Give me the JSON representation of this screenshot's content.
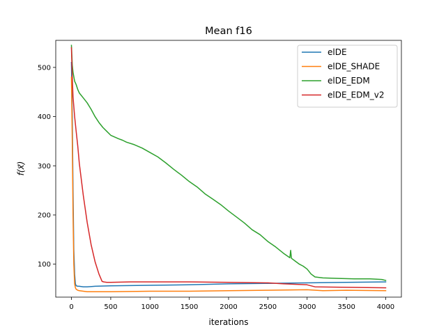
{
  "chart_data": {
    "type": "line",
    "title": "Mean f16",
    "xlabel": "iterations",
    "ylabel": "f(x⃗)",
    "xlim": [
      -200,
      4200
    ],
    "ylim": [
      33,
      555
    ],
    "xticks": [
      0,
      500,
      1000,
      1500,
      2000,
      2500,
      3000,
      3500,
      4000
    ],
    "yticks": [
      100,
      200,
      300,
      400,
      500
    ],
    "grid": false,
    "legend_position": "top-right",
    "series": [
      {
        "name": "elDE",
        "color": "#1f77b4",
        "x": [
          0,
          10,
          20,
          30,
          40,
          50,
          60,
          80,
          100,
          150,
          200,
          300,
          500,
          1000,
          1500,
          2000,
          2500,
          3000,
          3500,
          4000
        ],
        "y": [
          510,
          400,
          250,
          130,
          80,
          60,
          56,
          55,
          55,
          54,
          54,
          55,
          56,
          57,
          58,
          60,
          61,
          62,
          63,
          64
        ]
      },
      {
        "name": "elDE_SHADE",
        "color": "#ff7f0e",
        "x": [
          0,
          10,
          20,
          30,
          40,
          50,
          60,
          80,
          100,
          150,
          200,
          300,
          500,
          1000,
          1500,
          2000,
          2500,
          3000,
          3200,
          3500,
          4000
        ],
        "y": [
          480,
          350,
          200,
          100,
          60,
          52,
          49,
          47,
          46,
          45,
          44,
          44,
          44,
          45,
          45,
          46,
          47,
          48,
          46,
          47,
          46
        ]
      },
      {
        "name": "elDE_EDM",
        "color": "#2ca02c",
        "x": [
          0,
          10,
          20,
          40,
          60,
          80,
          100,
          150,
          200,
          250,
          300,
          350,
          400,
          450,
          500,
          600,
          650,
          700,
          800,
          900,
          1000,
          1100,
          1200,
          1300,
          1400,
          1500,
          1600,
          1700,
          1800,
          1900,
          2000,
          2100,
          2200,
          2300,
          2400,
          2500,
          2600,
          2700,
          2780,
          2790,
          2800,
          2850,
          2900,
          2950,
          3000,
          3050,
          3100,
          3200,
          3400,
          3600,
          3800,
          3950,
          4000
        ],
        "y": [
          545,
          505,
          490,
          472,
          465,
          455,
          448,
          438,
          428,
          415,
          400,
          388,
          378,
          370,
          362,
          355,
          352,
          348,
          343,
          336,
          327,
          318,
          306,
          293,
          281,
          268,
          257,
          243,
          232,
          221,
          208,
          196,
          184,
          170,
          160,
          146,
          135,
          122,
          113,
          128,
          112,
          106,
          100,
          96,
          90,
          80,
          74,
          72,
          71,
          70,
          70,
          69,
          67
        ]
      },
      {
        "name": "elDE_EDM_v2",
        "color": "#d62728",
        "x": [
          0,
          10,
          20,
          40,
          60,
          80,
          100,
          150,
          200,
          250,
          300,
          350,
          390,
          410,
          450,
          500,
          750,
          1000,
          1500,
          2000,
          2500,
          2700,
          3000,
          3100,
          3500,
          4000
        ],
        "y": [
          540,
          480,
          440,
          400,
          370,
          340,
          305,
          240,
          185,
          140,
          105,
          80,
          65,
          64,
          63,
          63,
          64,
          64,
          64,
          63,
          62,
          60,
          58,
          54,
          53,
          52
        ]
      }
    ]
  }
}
